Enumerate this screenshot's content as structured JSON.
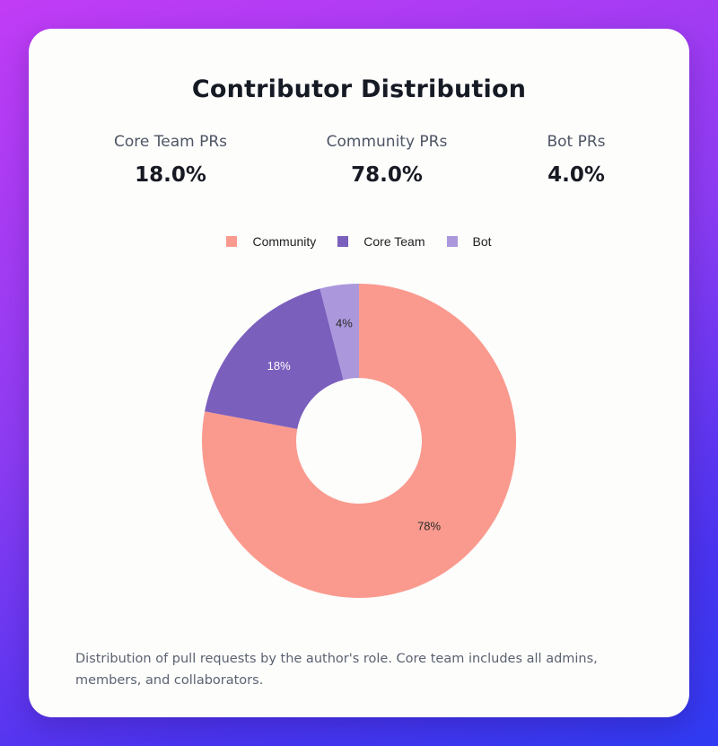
{
  "title": "Contributor Distribution",
  "stats": [
    {
      "label": "Core Team PRs",
      "value": "18.0%"
    },
    {
      "label": "Community PRs",
      "value": "78.0%"
    },
    {
      "label": "Bot PRs",
      "value": "4.0%"
    }
  ],
  "caption": "Distribution of pull requests by the author's role. Core team includes all admins, members, and collaborators.",
  "colors": {
    "community": "#fa9a8e",
    "core_team": "#7b5fbd",
    "bot": "#ab97dc"
  },
  "chart_data": {
    "type": "pie",
    "style": "donut",
    "legend_placement": "top",
    "categories": [
      "Community",
      "Core Team",
      "Bot"
    ],
    "values": [
      78,
      18,
      4
    ],
    "data_labels": [
      "78%",
      "18%",
      "4%"
    ]
  }
}
